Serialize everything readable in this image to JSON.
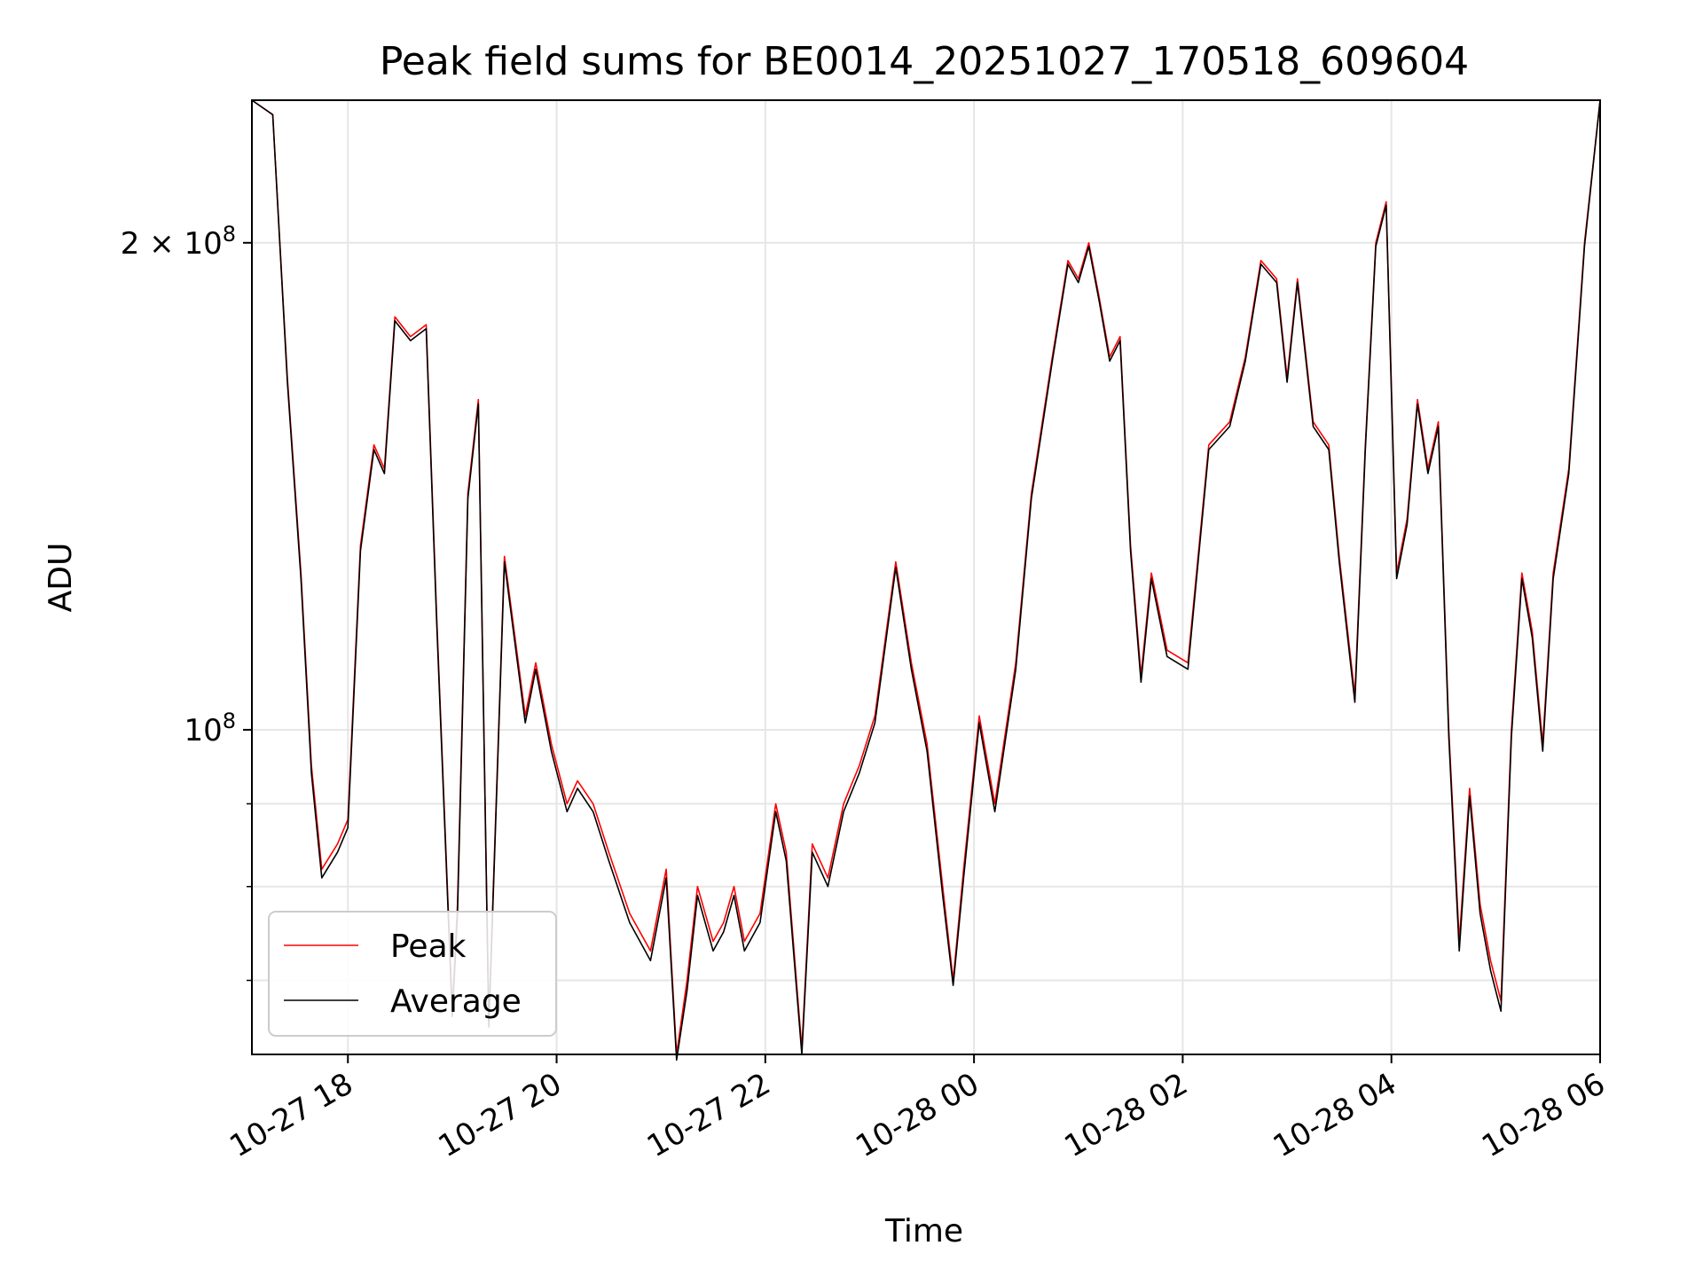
{
  "chart_data": {
    "type": "line",
    "title": "Peak field sums for BE0014_20251027_170518_609604",
    "xlabel": "Time",
    "ylabel": "ADU",
    "yscale": "log",
    "ylim": [
      63000000,
      245000000
    ],
    "xlim_hours": [
      17.08,
      30.0
    ],
    "grid": true,
    "legend_position": "lower-left",
    "x_ticks": [
      {
        "hour": 18,
        "label": "10-27 18"
      },
      {
        "hour": 20,
        "label": "10-27 20"
      },
      {
        "hour": 22,
        "label": "10-27 22"
      },
      {
        "hour": 24,
        "label": "10-28 00"
      },
      {
        "hour": 26,
        "label": "10-28 02"
      },
      {
        "hour": 28,
        "label": "10-28 04"
      },
      {
        "hour": 30,
        "label": "10-28 06"
      }
    ],
    "y_major_ticks": [
      {
        "value": 100000000,
        "base": "10",
        "exp": "8"
      },
      {
        "value": 200000000,
        "base": "2 × 10",
        "exp": "8"
      }
    ],
    "y_minor_ticks": [
      70000000,
      80000000,
      90000000
    ],
    "x_hours": [
      17.08,
      17.28,
      17.42,
      17.55,
      17.65,
      17.75,
      17.9,
      18.0,
      18.12,
      18.25,
      18.35,
      18.45,
      18.6,
      18.75,
      18.85,
      19.0,
      19.05,
      19.15,
      19.25,
      19.35,
      19.5,
      19.7,
      19.8,
      19.95,
      20.1,
      20.2,
      20.35,
      20.5,
      20.7,
      20.9,
      21.05,
      21.15,
      21.25,
      21.35,
      21.5,
      21.6,
      21.7,
      21.8,
      21.95,
      22.1,
      22.2,
      22.35,
      22.45,
      22.6,
      22.75,
      22.9,
      23.05,
      23.25,
      23.4,
      23.55,
      23.7,
      23.8,
      23.9,
      24.05,
      24.2,
      24.4,
      24.55,
      24.75,
      24.9,
      25.0,
      25.1,
      25.2,
      25.3,
      25.4,
      25.5,
      25.6,
      25.7,
      25.85,
      26.05,
      26.25,
      26.45,
      26.6,
      26.75,
      26.9,
      27.0,
      27.1,
      27.25,
      27.4,
      27.5,
      27.65,
      27.75,
      27.85,
      27.95,
      28.05,
      28.15,
      28.25,
      28.35,
      28.45,
      28.55,
      28.65,
      28.75,
      28.85,
      28.95,
      29.05,
      29.15,
      29.25,
      29.35,
      29.45,
      29.55,
      29.7,
      29.85,
      30.0
    ],
    "series": [
      {
        "name": "Peak",
        "color": "#ff0000",
        "values": [
          245000000,
          240000000,
          165000000,
          125000000,
          95000000,
          82000000,
          85000000,
          88000000,
          130000000,
          150000000,
          145000000,
          180000000,
          175000000,
          178000000,
          118000000,
          67000000,
          78000000,
          140000000,
          160000000,
          66000000,
          128000000,
          102000000,
          110000000,
          98000000,
          90000000,
          93000000,
          90000000,
          84000000,
          77000000,
          73000000,
          82000000,
          63000000,
          70000000,
          80000000,
          74000000,
          76000000,
          80000000,
          74000000,
          77000000,
          90000000,
          84000000,
          63500000,
          85000000,
          81000000,
          90000000,
          95000000,
          102000000,
          127000000,
          110000000,
          98000000,
          80000000,
          70000000,
          82000000,
          102000000,
          90000000,
          110000000,
          140000000,
          170000000,
          195000000,
          190000000,
          200000000,
          185000000,
          170000000,
          175000000,
          130000000,
          108000000,
          125000000,
          112000000,
          110000000,
          150000000,
          155000000,
          170000000,
          195000000,
          190000000,
          165000000,
          190000000,
          155000000,
          150000000,
          128000000,
          105000000,
          150000000,
          200000000,
          212000000,
          125000000,
          135000000,
          160000000,
          145000000,
          155000000,
          100000000,
          74000000,
          92000000,
          78000000,
          72000000,
          68000000,
          100000000,
          125000000,
          115000000,
          98000000,
          125000000,
          145000000,
          200000000,
          245000000
        ]
      },
      {
        "name": "Average",
        "color": "#000000",
        "values": [
          245000000,
          240000000,
          164000000,
          124000000,
          94000000,
          81000000,
          84000000,
          87000000,
          129000000,
          149000000,
          144000000,
          179000000,
          174000000,
          177000000,
          117000000,
          66500000,
          77000000,
          139000000,
          159000000,
          65500000,
          127000000,
          101000000,
          109000000,
          97000000,
          89000000,
          92000000,
          89000000,
          83000000,
          76000000,
          72000000,
          81000000,
          62500000,
          69000000,
          79000000,
          73000000,
          75000000,
          79000000,
          73000000,
          76000000,
          89000000,
          83000000,
          63000000,
          84000000,
          80000000,
          89000000,
          94000000,
          101000000,
          126000000,
          109000000,
          97000000,
          79000000,
          69500000,
          81000000,
          101000000,
          89000000,
          109000000,
          139000000,
          169000000,
          194000000,
          189000000,
          199000000,
          184000000,
          169000000,
          174000000,
          129000000,
          107000000,
          124000000,
          111000000,
          109000000,
          149000000,
          154000000,
          169000000,
          194000000,
          189000000,
          164000000,
          189000000,
          154000000,
          149000000,
          127000000,
          104000000,
          149000000,
          199000000,
          211000000,
          124000000,
          134000000,
          159000000,
          144000000,
          154000000,
          99000000,
          73000000,
          91000000,
          77000000,
          71000000,
          67000000,
          99000000,
          124000000,
          114000000,
          97000000,
          124000000,
          144000000,
          199000000,
          245000000
        ]
      }
    ]
  }
}
